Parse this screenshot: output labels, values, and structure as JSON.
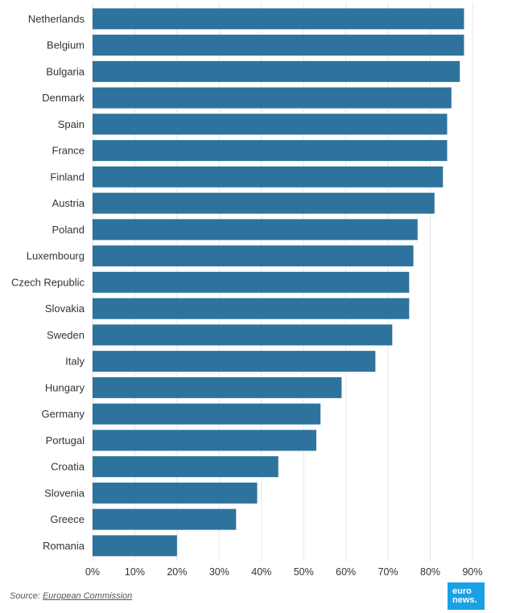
{
  "chart_data": {
    "type": "bar",
    "orientation": "horizontal",
    "categories": [
      "Netherlands",
      "Belgium",
      "Bulgaria",
      "Denmark",
      "Spain",
      "France",
      "Finland",
      "Austria",
      "Poland",
      "Luxembourg",
      "Czech Republic",
      "Slovakia",
      "Sweden",
      "Italy",
      "Hungary",
      "Germany",
      "Portugal",
      "Croatia",
      "Slovenia",
      "Greece",
      "Romania"
    ],
    "values": [
      88,
      88,
      87,
      85,
      84,
      84,
      83,
      81,
      77,
      76,
      75,
      75,
      71,
      67,
      59,
      54,
      53,
      44,
      39,
      34,
      20
    ],
    "xlim": [
      0,
      90
    ],
    "xticks": [
      0,
      10,
      20,
      30,
      40,
      50,
      60,
      70,
      80,
      90
    ],
    "tick_labels": [
      "0%",
      "10%",
      "20%",
      "30%",
      "40%",
      "50%",
      "60%",
      "70%",
      "80%",
      "90%"
    ],
    "grid": true,
    "bar_color": "#2e739d"
  },
  "footer": {
    "source_prefix": "Source: ",
    "source_link": "European Commission",
    "logo_line1": "euro",
    "logo_line2": "news."
  }
}
